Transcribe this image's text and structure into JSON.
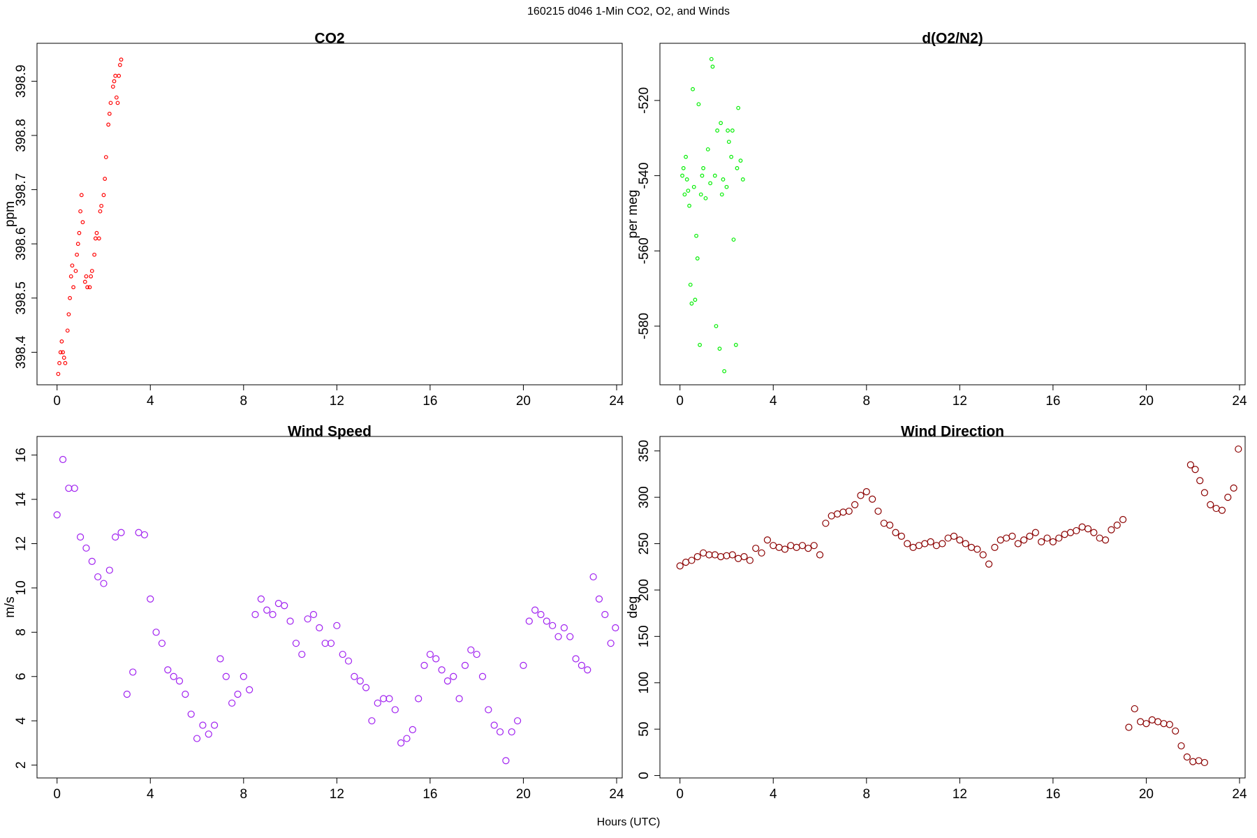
{
  "title": "160215   d046   1-Min CO2, O2, and Winds",
  "x_label": "Hours (UTC)",
  "chart_data": [
    {
      "type": "scatter",
      "title": "CO2",
      "y_label": "ppm",
      "color": "#ff0000",
      "xlim": [
        -0.86,
        24.24
      ],
      "xticks": [
        0,
        4,
        8,
        12,
        16,
        20,
        24
      ],
      "ylim": [
        398.34,
        398.97
      ],
      "yticks": [
        398.4,
        398.5,
        398.6,
        398.7,
        398.8,
        398.9
      ],
      "x": [
        0.05,
        0.1,
        0.15,
        0.2,
        0.25,
        0.3,
        0.35,
        0.45,
        0.5,
        0.55,
        0.6,
        0.65,
        0.7,
        0.8,
        0.85,
        0.9,
        0.95,
        1.0,
        1.05,
        1.1,
        1.2,
        1.25,
        1.3,
        1.4,
        1.45,
        1.5,
        1.6,
        1.65,
        1.7,
        1.8,
        1.85,
        1.9,
        2.0,
        2.05,
        2.1,
        2.2,
        2.25,
        2.3,
        2.4,
        2.45,
        2.5,
        2.55,
        2.6,
        2.65,
        2.7,
        2.75
      ],
      "values": [
        398.36,
        398.38,
        398.4,
        398.42,
        398.4,
        398.39,
        398.38,
        398.44,
        398.47,
        398.5,
        398.54,
        398.56,
        398.52,
        398.55,
        398.58,
        398.6,
        398.62,
        398.66,
        398.69,
        398.64,
        398.53,
        398.54,
        398.52,
        398.52,
        398.54,
        398.55,
        398.58,
        398.61,
        398.62,
        398.61,
        398.66,
        398.67,
        398.69,
        398.72,
        398.76,
        398.82,
        398.84,
        398.86,
        398.89,
        398.9,
        398.91,
        398.87,
        398.86,
        398.91,
        398.93,
        398.94
      ]
    },
    {
      "type": "scatter",
      "title": "d(O2/N2)",
      "y_label": "per meg",
      "color": "#00ee00",
      "xlim": [
        -0.86,
        24.24
      ],
      "xticks": [
        0,
        4,
        8,
        12,
        16,
        20,
        24
      ],
      "ylim": [
        -595.6,
        -504.8
      ],
      "yticks": [
        -580,
        -560,
        -540,
        -520
      ],
      "x": [
        0.1,
        0.15,
        0.2,
        0.25,
        0.3,
        0.35,
        0.4,
        0.45,
        0.5,
        0.55,
        0.6,
        0.65,
        0.7,
        0.75,
        0.8,
        0.85,
        0.9,
        0.95,
        1.0,
        1.1,
        1.2,
        1.3,
        1.35,
        1.4,
        1.5,
        1.55,
        1.6,
        1.7,
        1.75,
        1.8,
        1.85,
        1.9,
        2.0,
        2.05,
        2.1,
        2.2,
        2.25,
        2.3,
        2.4,
        2.45,
        2.5,
        2.6,
        2.7
      ],
      "values": [
        -540,
        -538,
        -545,
        -535,
        -541,
        -544,
        -548,
        -569,
        -574,
        -517,
        -543,
        -573,
        -556,
        -562,
        -521,
        -585,
        -545,
        -540,
        -538,
        -546,
        -533,
        -542,
        -509,
        -511,
        -540,
        -580,
        -528,
        -586,
        -526,
        -545,
        -541,
        -592,
        -543,
        -528,
        -531,
        -535,
        -528,
        -557,
        -585,
        -538,
        -522,
        -536,
        -541
      ]
    },
    {
      "type": "scatter",
      "title": "Wind Speed",
      "y_label": "m/s",
      "color": "#a020f0",
      "xlim": [
        -0.86,
        24.24
      ],
      "xticks": [
        0,
        4,
        8,
        12,
        16,
        20,
        24
      ],
      "ylim": [
        1.42,
        16.84
      ],
      "yticks": [
        2,
        4,
        6,
        8,
        10,
        12,
        14,
        16
      ],
      "x": [
        0,
        0.25,
        0.5,
        0.75,
        1,
        1.25,
        1.5,
        1.75,
        2,
        2.25,
        2.5,
        2.75,
        3,
        3.25,
        3.5,
        3.75,
        4,
        4.25,
        4.5,
        4.75,
        5,
        5.25,
        5.5,
        5.75,
        6,
        6.25,
        6.5,
        6.75,
        7,
        7.25,
        7.5,
        7.75,
        8,
        8.25,
        8.5,
        8.75,
        9,
        9.25,
        9.5,
        9.75,
        10,
        10.25,
        10.5,
        10.75,
        11,
        11.25,
        11.5,
        11.75,
        12,
        12.25,
        12.5,
        12.75,
        13,
        13.25,
        13.5,
        13.75,
        14,
        14.25,
        14.5,
        14.75,
        15,
        15.25,
        15.5,
        15.75,
        16,
        16.25,
        16.5,
        16.75,
        17,
        17.25,
        17.5,
        17.75,
        18,
        18.25,
        18.5,
        18.75,
        19,
        19.25,
        19.5,
        19.75,
        20,
        20.25,
        20.5,
        20.75,
        21,
        21.25,
        21.5,
        21.75,
        22,
        22.25,
        22.5,
        22.75,
        23,
        23.25,
        23.5,
        23.75,
        23.95
      ],
      "values": [
        13.3,
        15.8,
        14.5,
        14.5,
        12.3,
        11.8,
        11.2,
        10.5,
        10.2,
        10.8,
        12.3,
        12.5,
        5.2,
        6.2,
        12.5,
        12.4,
        9.5,
        8.0,
        7.5,
        6.3,
        6.0,
        5.8,
        5.2,
        4.3,
        3.2,
        3.8,
        3.4,
        3.8,
        6.8,
        6.0,
        4.8,
        5.2,
        6.0,
        5.4,
        8.8,
        9.5,
        9.0,
        8.8,
        9.3,
        9.2,
        8.5,
        7.5,
        7.0,
        8.6,
        8.8,
        8.2,
        7.5,
        7.5,
        8.3,
        7.0,
        6.7,
        6.0,
        5.8,
        5.5,
        4.0,
        4.8,
        5.0,
        5.0,
        4.5,
        3.0,
        3.2,
        3.6,
        5.0,
        6.5,
        7.0,
        6.8,
        6.3,
        5.8,
        6.0,
        5.0,
        6.5,
        7.2,
        7.0,
        6.0,
        4.5,
        3.8,
        3.5,
        2.2,
        3.5,
        4.0,
        6.5,
        8.5,
        9.0,
        8.8,
        8.5,
        8.3,
        7.8,
        8.2,
        7.8,
        6.8,
        6.5,
        6.3,
        10.5,
        9.5,
        8.8,
        7.5,
        8.2
      ]
    },
    {
      "type": "scatter",
      "title": "Wind Direction",
      "y_label": "deg",
      "color": "#8b0000",
      "xlim": [
        -0.86,
        24.24
      ],
      "xticks": [
        0,
        4,
        8,
        12,
        16,
        20,
        24
      ],
      "ylim": [
        -2.6,
        365.6
      ],
      "yticks": [
        0,
        50,
        100,
        150,
        200,
        250,
        300,
        350
      ],
      "x": [
        0,
        0.25,
        0.5,
        0.75,
        1,
        1.25,
        1.5,
        1.75,
        2,
        2.25,
        2.5,
        2.75,
        3,
        3.25,
        3.5,
        3.75,
        4,
        4.25,
        4.5,
        4.75,
        5,
        5.25,
        5.5,
        5.75,
        6,
        6.25,
        6.5,
        6.75,
        7,
        7.25,
        7.5,
        7.75,
        8,
        8.25,
        8.5,
        8.75,
        9,
        9.25,
        9.5,
        9.75,
        10,
        10.25,
        10.5,
        10.75,
        11,
        11.25,
        11.5,
        11.75,
        12,
        12.25,
        12.5,
        12.75,
        13,
        13.25,
        13.5,
        13.75,
        14,
        14.25,
        14.5,
        14.75,
        15,
        15.25,
        15.5,
        15.75,
        16,
        16.25,
        16.5,
        16.75,
        17,
        17.25,
        17.5,
        17.75,
        18,
        18.25,
        18.5,
        18.75,
        19,
        19.25,
        19.5,
        19.75,
        20,
        20.25,
        20.5,
        20.75,
        21,
        21.25,
        21.5,
        21.75,
        22,
        22.25,
        22.5,
        21.9,
        22.1,
        22.3,
        22.5,
        22.75,
        23,
        23.25,
        23.5,
        23.75,
        23.95
      ],
      "values": [
        226,
        230,
        232,
        236,
        240,
        238,
        238,
        236,
        237,
        238,
        234,
        236,
        232,
        245,
        240,
        254,
        248,
        246,
        244,
        248,
        246,
        248,
        245,
        248,
        238,
        272,
        280,
        282,
        284,
        285,
        292,
        302,
        306,
        298,
        285,
        272,
        270,
        262,
        258,
        250,
        246,
        248,
        250,
        252,
        248,
        250,
        256,
        258,
        254,
        250,
        246,
        244,
        238,
        228,
        246,
        254,
        256,
        258,
        250,
        254,
        258,
        262,
        252,
        256,
        252,
        256,
        260,
        262,
        264,
        268,
        266,
        262,
        256,
        254,
        265,
        270,
        276,
        52,
        72,
        58,
        56,
        60,
        58,
        56,
        55,
        48,
        32,
        20,
        15,
        16,
        14,
        335,
        330,
        318,
        305,
        292,
        288,
        286,
        300,
        310,
        352
      ]
    }
  ]
}
